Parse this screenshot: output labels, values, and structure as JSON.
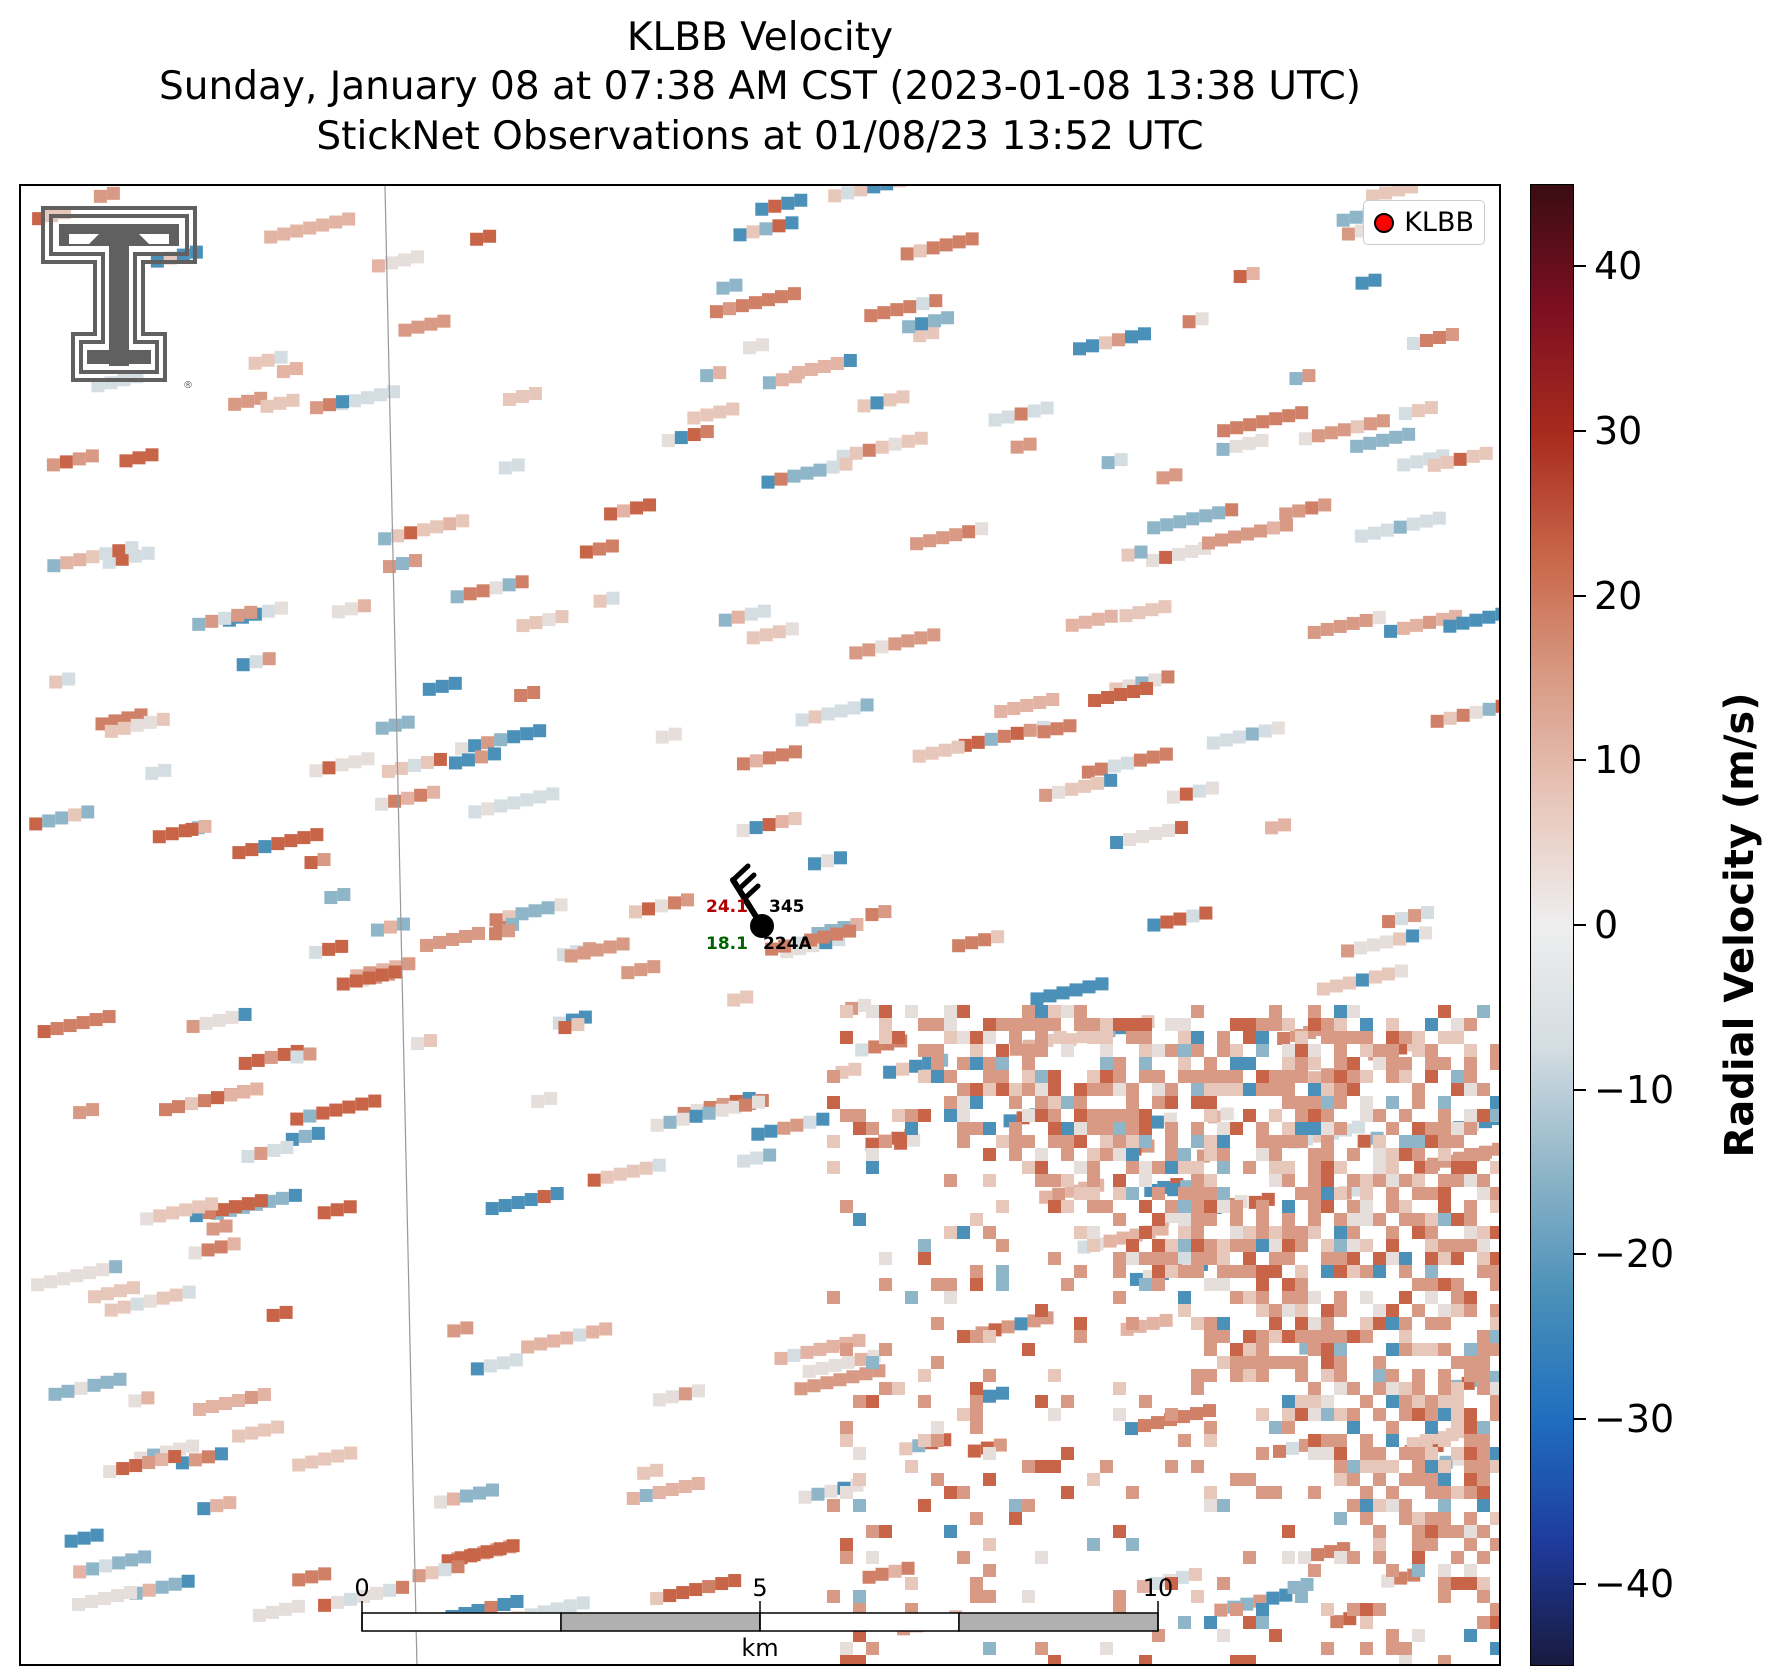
{
  "title": {
    "line1": "KLBB Velocity",
    "line2": "Sunday, January 08 at 07:38 AM CST (2023-01-08 13:38 UTC)",
    "line3": "StickNet Observations at 01/08/23 13:52 UTC"
  },
  "legend": {
    "label": "KLBB",
    "marker_color": "#ff0000"
  },
  "logo": {
    "name": "texas-tech-double-t-logo",
    "color": "#606060"
  },
  "station": {
    "id": "224A",
    "temperature": "24.1",
    "dewpoint": "18.1",
    "wind_direction": "345",
    "temperature_color": "#b00000",
    "dewpoint_color": "#006400"
  },
  "scale_bar": {
    "ticks": [
      "0",
      "5",
      "10"
    ],
    "unit": "km"
  },
  "colorbar": {
    "label": "Radial Velocity (m/s)",
    "min": -45,
    "max": 45,
    "ticks": [
      {
        "value": 40,
        "label": "40"
      },
      {
        "value": 30,
        "label": "30"
      },
      {
        "value": 20,
        "label": "20"
      },
      {
        "value": 10,
        "label": "10"
      },
      {
        "value": 0,
        "label": "0"
      },
      {
        "value": -10,
        "label": "−10"
      },
      {
        "value": -20,
        "label": "−20"
      },
      {
        "value": -30,
        "label": "−30"
      },
      {
        "value": -40,
        "label": "−40"
      }
    ],
    "colors": [
      "#181a3e",
      "#1f3b9e",
      "#1f6fbf",
      "#4a90b8",
      "#8fb5c8",
      "#d4dde2",
      "#eeeeee",
      "#e8c7bb",
      "#d89a84",
      "#c86548",
      "#a82a1e",
      "#7d0f22",
      "#3a0d12"
    ]
  }
}
